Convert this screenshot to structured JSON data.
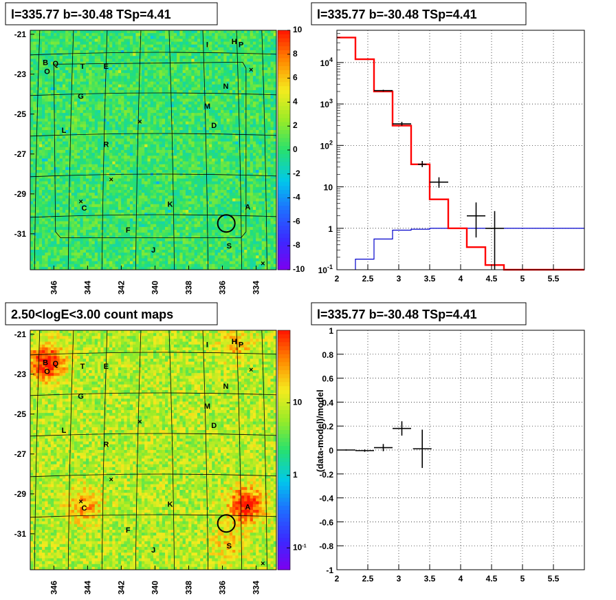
{
  "panels": {
    "top_left_title": "l=335.77 b=-30.48 TSp=4.41",
    "top_right_title": "l=335.77 b=-30.48 TSp=4.41",
    "bottom_left_title": "2.50<logE<3.00 count maps",
    "bottom_right_title": "l=335.77 b=-30.48 TSp=4.41"
  },
  "colors": {
    "model_line": "#ff0000",
    "background_line": "#0000cc",
    "data_marker": "#000000",
    "grid": "#000000"
  },
  "chart_data": [
    {
      "type": "heatmap",
      "id": "residual-map",
      "x_ticks": [
        "346",
        "344",
        "342",
        "340",
        "338",
        "336",
        "334"
      ],
      "y_ticks": [
        "-21",
        "-23",
        "-25",
        "-27",
        "-29",
        "-31"
      ],
      "xlim": [
        347.4,
        332.8
      ],
      "ylim": [
        -32.8,
        -20.8
      ],
      "colorbar": {
        "scale": "linear",
        "range": [
          -10,
          10
        ],
        "ticks": [
          "10",
          "8",
          "6",
          "4",
          "2",
          "0",
          "-2",
          "-4",
          "-6",
          "-8",
          "-10"
        ]
      },
      "sources": [
        {
          "label": "B",
          "l": 346.5,
          "b": -22.4
        },
        {
          "label": "Q",
          "l": 345.9,
          "b": -22.45
        },
        {
          "label": "O",
          "l": 346.4,
          "b": -22.85
        },
        {
          "label": "T",
          "l": 344.3,
          "b": -22.6
        },
        {
          "label": "E",
          "l": 342.9,
          "b": -22.6
        },
        {
          "label": "I",
          "l": 336.9,
          "b": -21.5
        },
        {
          "label": "H",
          "l": 335.3,
          "b": -21.35
        },
        {
          "label": "P",
          "l": 334.9,
          "b": -21.5
        },
        {
          "label": "N",
          "l": 335.8,
          "b": -23.6
        },
        {
          "label": "G",
          "l": 344.4,
          "b": -24.1
        },
        {
          "label": "M",
          "l": 336.9,
          "b": -24.6
        },
        {
          "label": "D",
          "l": 336.5,
          "b": -25.55
        },
        {
          "label": "L",
          "l": 345.4,
          "b": -25.8
        },
        {
          "label": "R",
          "l": 342.9,
          "b": -26.5
        },
        {
          "label": "K",
          "l": 339.1,
          "b": -29.5
        },
        {
          "label": "C",
          "l": 344.2,
          "b": -29.7
        },
        {
          "label": "A",
          "l": 334.5,
          "b": -29.65
        },
        {
          "label": "F",
          "l": 341.6,
          "b": -30.8
        },
        {
          "label": "S",
          "l": 335.6,
          "b": -31.6
        },
        {
          "label": "J",
          "l": 340.1,
          "b": -31.8
        }
      ],
      "crosses": [
        {
          "l": 334.3,
          "b": -22.8
        },
        {
          "l": 340.9,
          "b": -25.4
        },
        {
          "l": 342.6,
          "b": -28.3
        },
        {
          "l": 344.4,
          "b": -29.4
        },
        {
          "l": 333.6,
          "b": -32.5
        }
      ],
      "circle": {
        "l": 335.77,
        "b": -30.48,
        "r_deg": 0.5
      }
    },
    {
      "type": "line",
      "id": "spectrum",
      "xlim": [
        2,
        6
      ],
      "ylim": [
        0.1,
        60000
      ],
      "y_scale": "log",
      "x_ticks": [
        "2",
        "2.5",
        "3",
        "3.5",
        "4",
        "4.5",
        "5",
        "5.5"
      ],
      "y_ticks": [
        "10^-1",
        "1",
        "10",
        "10^2",
        "10^3",
        "10^4"
      ],
      "model_step": {
        "edges": [
          2,
          2.3,
          2.6,
          2.9,
          3.2,
          3.5,
          3.8,
          4.1,
          4.4,
          4.7,
          6
        ],
        "values": [
          40000,
          12000,
          2000,
          300,
          35,
          5,
          1,
          0.35,
          0.13,
          0.1
        ]
      },
      "background_step": {
        "edges": [
          2.3,
          2.6,
          2.9,
          3.2,
          3.5,
          3.8,
          6
        ],
        "values": [
          0.18,
          0.55,
          0.9,
          0.95,
          1.0,
          1.0
        ]
      },
      "data_points": [
        {
          "x": 2.75,
          "y": 2100,
          "xerr": 0.15,
          "ylo": 2000,
          "yhi": 2200
        },
        {
          "x": 3.05,
          "y": 330,
          "xerr": 0.15,
          "ylo": 300,
          "yhi": 370
        },
        {
          "x": 3.38,
          "y": 35,
          "xerr": 0.07,
          "ylo": 30,
          "yhi": 42
        },
        {
          "x": 3.65,
          "y": 13,
          "xerr": 0.15,
          "ylo": 9.5,
          "yhi": 17
        },
        {
          "x": 4.25,
          "y": 2.0,
          "xerr": 0.15,
          "ylo": 0.6,
          "yhi": 4.2
        },
        {
          "x": 4.55,
          "y": 1.0,
          "xerr": 0.15,
          "ylo": 0.1,
          "yhi": 2.6
        }
      ]
    },
    {
      "type": "heatmap",
      "id": "count-map",
      "x_ticks": [
        "346",
        "344",
        "342",
        "340",
        "338",
        "336",
        "334"
      ],
      "y_ticks": [
        "-21",
        "-23",
        "-25",
        "-27",
        "-29",
        "-31"
      ],
      "xlim": [
        347.4,
        332.8
      ],
      "ylim": [
        -32.8,
        -20.8
      ],
      "colorbar": {
        "scale": "log",
        "range": [
          0.05,
          100
        ],
        "ticks": [
          "10",
          "1",
          "10^-1"
        ]
      },
      "hotspots": [
        {
          "label": "B",
          "l": 346.4,
          "b": -22.4,
          "strength": 1.0
        },
        {
          "label": "A",
          "l": 334.6,
          "b": -29.6,
          "strength": 1.0
        },
        {
          "label": "C",
          "l": 344.2,
          "b": -29.6,
          "strength": 0.5
        },
        {
          "label": "H",
          "l": 335.2,
          "b": -21.5,
          "strength": 0.35
        },
        {
          "label": "S",
          "l": 335.6,
          "b": -31.5,
          "strength": 0.3
        }
      ]
    },
    {
      "type": "scatter",
      "id": "residuals",
      "xlim": [
        2,
        6
      ],
      "ylim": [
        -1,
        1
      ],
      "ylabel": "(data-model)/model",
      "x_ticks": [
        "2",
        "2.5",
        "3",
        "3.5",
        "4",
        "4.5",
        "5",
        "5.5"
      ],
      "y_ticks": [
        "1",
        "0.8",
        "0.6",
        "0.4",
        "0.2",
        "0",
        "-0.2",
        "-0.4",
        "-0.6",
        "-0.8",
        "-1"
      ],
      "points": [
        {
          "x": 2.15,
          "y": 0.0,
          "xerr": 0.15,
          "yerr": 0.005
        },
        {
          "x": 2.45,
          "y": -0.005,
          "xerr": 0.15,
          "yerr": 0.01
        },
        {
          "x": 2.75,
          "y": 0.02,
          "xerr": 0.15,
          "yerr": 0.03
        },
        {
          "x": 3.05,
          "y": 0.18,
          "xerr": 0.15,
          "yerr": 0.06
        },
        {
          "x": 3.38,
          "y": 0.01,
          "xerr": 0.15,
          "yerr": 0.16
        }
      ]
    }
  ]
}
